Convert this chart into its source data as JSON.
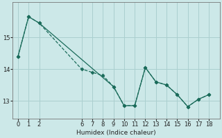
{
  "xlabel": "Humidex (Indice chaleur)",
  "background_color": "#cce8e8",
  "grid_color": "#aacfcf",
  "line_color": "#1a6b5a",
  "line1_x": [
    0,
    1,
    2,
    6,
    7,
    8,
    9,
    10,
    11,
    12,
    13,
    14,
    15,
    16,
    17,
    18
  ],
  "line1_y": [
    14.4,
    15.65,
    15.45,
    14.0,
    13.9,
    13.8,
    13.45,
    12.85,
    12.85,
    14.05,
    13.6,
    13.5,
    13.2,
    12.82,
    13.05,
    13.2
  ],
  "line2_x": [
    0,
    1,
    2,
    9,
    10,
    11,
    12,
    13,
    14,
    15,
    16,
    17,
    18
  ],
  "line2_y": [
    14.4,
    15.65,
    15.45,
    13.45,
    12.85,
    12.85,
    14.05,
    13.6,
    13.5,
    13.2,
    12.82,
    13.05,
    13.2
  ],
  "xlim": [
    -0.5,
    19.0
  ],
  "ylim": [
    12.45,
    16.1
  ],
  "yticks": [
    13,
    14,
    15
  ],
  "xticks": [
    0,
    1,
    2,
    6,
    7,
    8,
    9,
    10,
    11,
    12,
    13,
    14,
    15,
    16,
    17,
    18
  ]
}
